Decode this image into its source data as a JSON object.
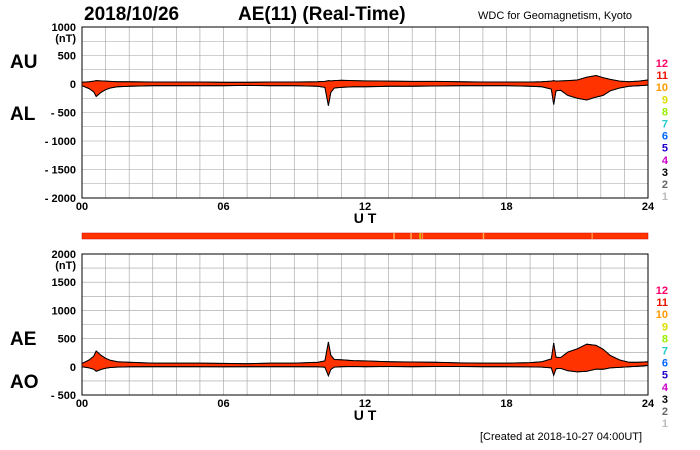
{
  "header": {
    "date": "2018/10/26",
    "title": "AE(11) (Real-Time)",
    "source": "WDC for Geomagnetism, Kyoto"
  },
  "footer": {
    "created": "[Created at 2018-10-27 04:00UT]"
  },
  "colors": {
    "fill": "#ff3300",
    "outline": "#000000",
    "grid": "#a0a0a0",
    "strip": "#ff3300"
  },
  "station_count": {
    "labels": [
      "12",
      "11",
      "10",
      "9",
      "8",
      "7",
      "6",
      "5",
      "4",
      "3",
      "2",
      "1"
    ],
    "colors": [
      "#ff0066",
      "#ee1100",
      "#ff9900",
      "#dddd00",
      "#99ee00",
      "#22cccc",
      "#0066ff",
      "#2200cc",
      "#cc00cc",
      "#000000",
      "#666666",
      "#bbbbbb"
    ]
  },
  "chart_data": [
    {
      "type": "area",
      "panel": "AU/AL",
      "series_labels": [
        "AU",
        "AL"
      ],
      "ylabel": "(nT)",
      "xlabel": "U T",
      "xlim": [
        0,
        24
      ],
      "ylim": [
        -2000,
        1000
      ],
      "x_ticks": [
        "00",
        "06",
        "12",
        "18",
        "24"
      ],
      "y_ticks": [
        "1000",
        "500",
        "0",
        "- 500",
        "- 1000",
        "- 1500",
        "- 2000"
      ],
      "grid": true,
      "x": [
        0,
        0.3,
        0.5,
        0.6,
        0.8,
        1.0,
        1.2,
        1.5,
        2,
        3,
        4,
        5,
        6,
        7,
        8,
        9,
        10,
        10.3,
        10.45,
        10.55,
        10.7,
        11,
        11.5,
        12,
        13,
        14,
        15,
        16,
        17,
        18,
        19,
        19.5,
        19.9,
        20.0,
        20.1,
        20.3,
        20.6,
        21,
        21.4,
        21.8,
        22.1,
        22.4,
        22.8,
        23.2,
        23.6,
        24
      ],
      "au": [
        30,
        40,
        50,
        60,
        55,
        50,
        45,
        40,
        40,
        35,
        35,
        35,
        30,
        30,
        35,
        35,
        40,
        45,
        60,
        55,
        60,
        65,
        60,
        55,
        50,
        45,
        45,
        40,
        35,
        35,
        35,
        40,
        50,
        60,
        50,
        55,
        60,
        70,
        120,
        150,
        110,
        80,
        50,
        40,
        50,
        70
      ],
      "al": [
        -30,
        -80,
        -140,
        -220,
        -150,
        -100,
        -70,
        -50,
        -40,
        -30,
        -30,
        -30,
        -30,
        -25,
        -30,
        -30,
        -40,
        -60,
        -380,
        -150,
        -70,
        -60,
        -50,
        -50,
        -40,
        -40,
        -35,
        -30,
        -30,
        -30,
        -40,
        -50,
        -90,
        -360,
        -120,
        -110,
        -200,
        -250,
        -280,
        -230,
        -200,
        -120,
        -70,
        -40,
        -30,
        -20
      ]
    },
    {
      "type": "area",
      "panel": "AE/AO",
      "series_labels": [
        "AE",
        "AO"
      ],
      "ylabel": "(nT)",
      "xlabel": "U T",
      "xlim": [
        0,
        24
      ],
      "ylim": [
        -500,
        2000
      ],
      "x_ticks": [
        "00",
        "06",
        "12",
        "18",
        "24"
      ],
      "y_ticks": [
        "2000",
        "1500",
        "1000",
        "500",
        "0",
        "- 500"
      ],
      "grid": true
    }
  ]
}
